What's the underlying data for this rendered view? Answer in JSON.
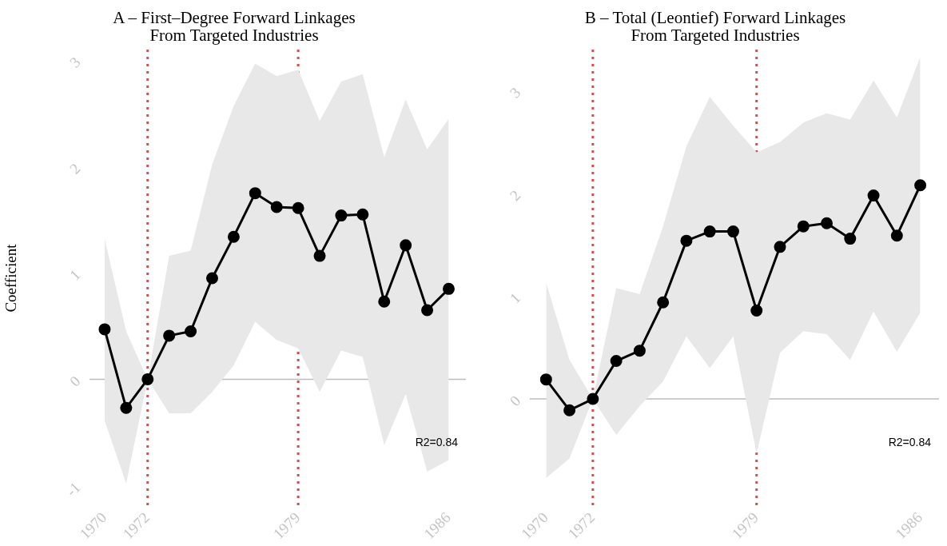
{
  "chart_data": [
    {
      "type": "line",
      "title": "A – First–Degree Forward Linkages\nFrom Targeted Industries",
      "ylabel": "Coefficient",
      "x": [
        1970,
        1971,
        1972,
        1973,
        1974,
        1975,
        1976,
        1977,
        1978,
        1979,
        1980,
        1981,
        1982,
        1983,
        1984,
        1985,
        1986
      ],
      "series": [
        {
          "color": "#000000",
          "values": [
            0.47,
            -0.27,
            0,
            0.41,
            0.45,
            0.95,
            1.34,
            1.75,
            1.62,
            1.61,
            1.16,
            1.54,
            1.55,
            0.73,
            1.26,
            0.65,
            0.85
          ],
          "lower": [
            -0.39,
            -0.98,
            0,
            -0.32,
            -0.32,
            -0.12,
            0.13,
            0.54,
            0.37,
            0.29,
            -0.12,
            0.27,
            0.21,
            -0.62,
            -0.14,
            -0.87,
            -0.76
          ],
          "upper": [
            1.32,
            0.45,
            0,
            1.16,
            1.21,
            2.02,
            2.57,
            2.97,
            2.85,
            2.91,
            2.43,
            2.8,
            2.87,
            2.09,
            2.63,
            2.16,
            2.45
          ]
        }
      ],
      "xlim": [
        1969.3,
        1986.8
      ],
      "xticks": [
        1970,
        1972,
        1979,
        1986
      ],
      "ylim": [
        -1.2,
        3.1
      ],
      "yticks": [
        -1,
        0,
        1,
        2,
        3
      ],
      "ref_lines": [
        {
          "axis": "x",
          "value": 1972,
          "color": "#d05050",
          "line_style": "dotted"
        },
        {
          "axis": "x",
          "value": 1979,
          "color": "#d05050",
          "line_style": "dotted"
        },
        {
          "axis": "y",
          "value": 0,
          "color": "#bdbdbd",
          "line_style": "solid"
        }
      ],
      "annotations": [
        "R2=0.84"
      ],
      "marker": "circle",
      "line_style": "solid",
      "grid": false,
      "legend": false
    },
    {
      "type": "line",
      "title": "B – Total (Leontief) Forward Linkages\nFrom Targeted Industries",
      "x": [
        1970,
        1971,
        1972,
        1973,
        1974,
        1975,
        1976,
        1977,
        1978,
        1979,
        1980,
        1981,
        1982,
        1983,
        1984,
        1985,
        1986
      ],
      "series": [
        {
          "color": "#000000",
          "values": [
            0.19,
            -0.11,
            0,
            0.37,
            0.47,
            0.94,
            1.54,
            1.63,
            1.63,
            0.86,
            1.48,
            1.68,
            1.71,
            1.56,
            1.98,
            1.59,
            2.08
          ],
          "lower": [
            -0.77,
            -0.58,
            0,
            -0.35,
            -0.07,
            0.17,
            0.61,
            0.3,
            0.61,
            -0.53,
            0.45,
            0.66,
            0.63,
            0.38,
            0.85,
            0.46,
            0.84
          ],
          "upper": [
            1.13,
            0.38,
            0,
            1.08,
            1.02,
            1.68,
            2.46,
            2.94,
            2.66,
            2.4,
            2.5,
            2.69,
            2.78,
            2.72,
            3.1,
            2.74,
            3.33
          ]
        }
      ],
      "xlim": [
        1969.3,
        1986.8
      ],
      "xticks": [
        1970,
        1972,
        1979,
        1986
      ],
      "ylim": [
        -1.05,
        3.4
      ],
      "yticks": [
        0,
        1,
        2,
        3
      ],
      "ref_lines": [
        {
          "axis": "x",
          "value": 1972,
          "color": "#d05050",
          "line_style": "dotted"
        },
        {
          "axis": "x",
          "value": 1979,
          "color": "#d05050",
          "line_style": "dotted"
        },
        {
          "axis": "y",
          "value": 0,
          "color": "#bdbdbd",
          "line_style": "solid"
        }
      ],
      "annotations": [
        "R2=0.84"
      ],
      "marker": "circle",
      "line_style": "solid",
      "grid": false,
      "legend": false
    }
  ]
}
